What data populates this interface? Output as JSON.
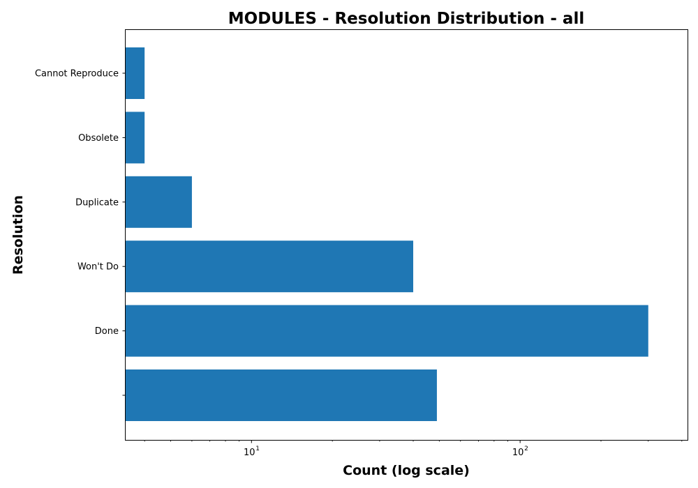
{
  "chart_data": {
    "type": "bar",
    "orientation": "horizontal",
    "title": "MODULES - Resolution Distribution - all",
    "xlabel": "Count (log scale)",
    "ylabel": "Resolution",
    "x_scale": "log",
    "xlim": [
      3.4,
      420
    ],
    "categories": [
      "",
      "Done",
      "Won't Do",
      "Duplicate",
      "Obsolete",
      "Cannot Reproduce"
    ],
    "values": [
      49,
      300,
      40,
      6,
      4,
      4
    ],
    "x_ticks": [
      {
        "base": "10",
        "exp": "1",
        "value": 10
      },
      {
        "base": "10",
        "exp": "2",
        "value": 100
      }
    ],
    "bar_color": "#1f77b4",
    "grid": false,
    "legend": false
  }
}
